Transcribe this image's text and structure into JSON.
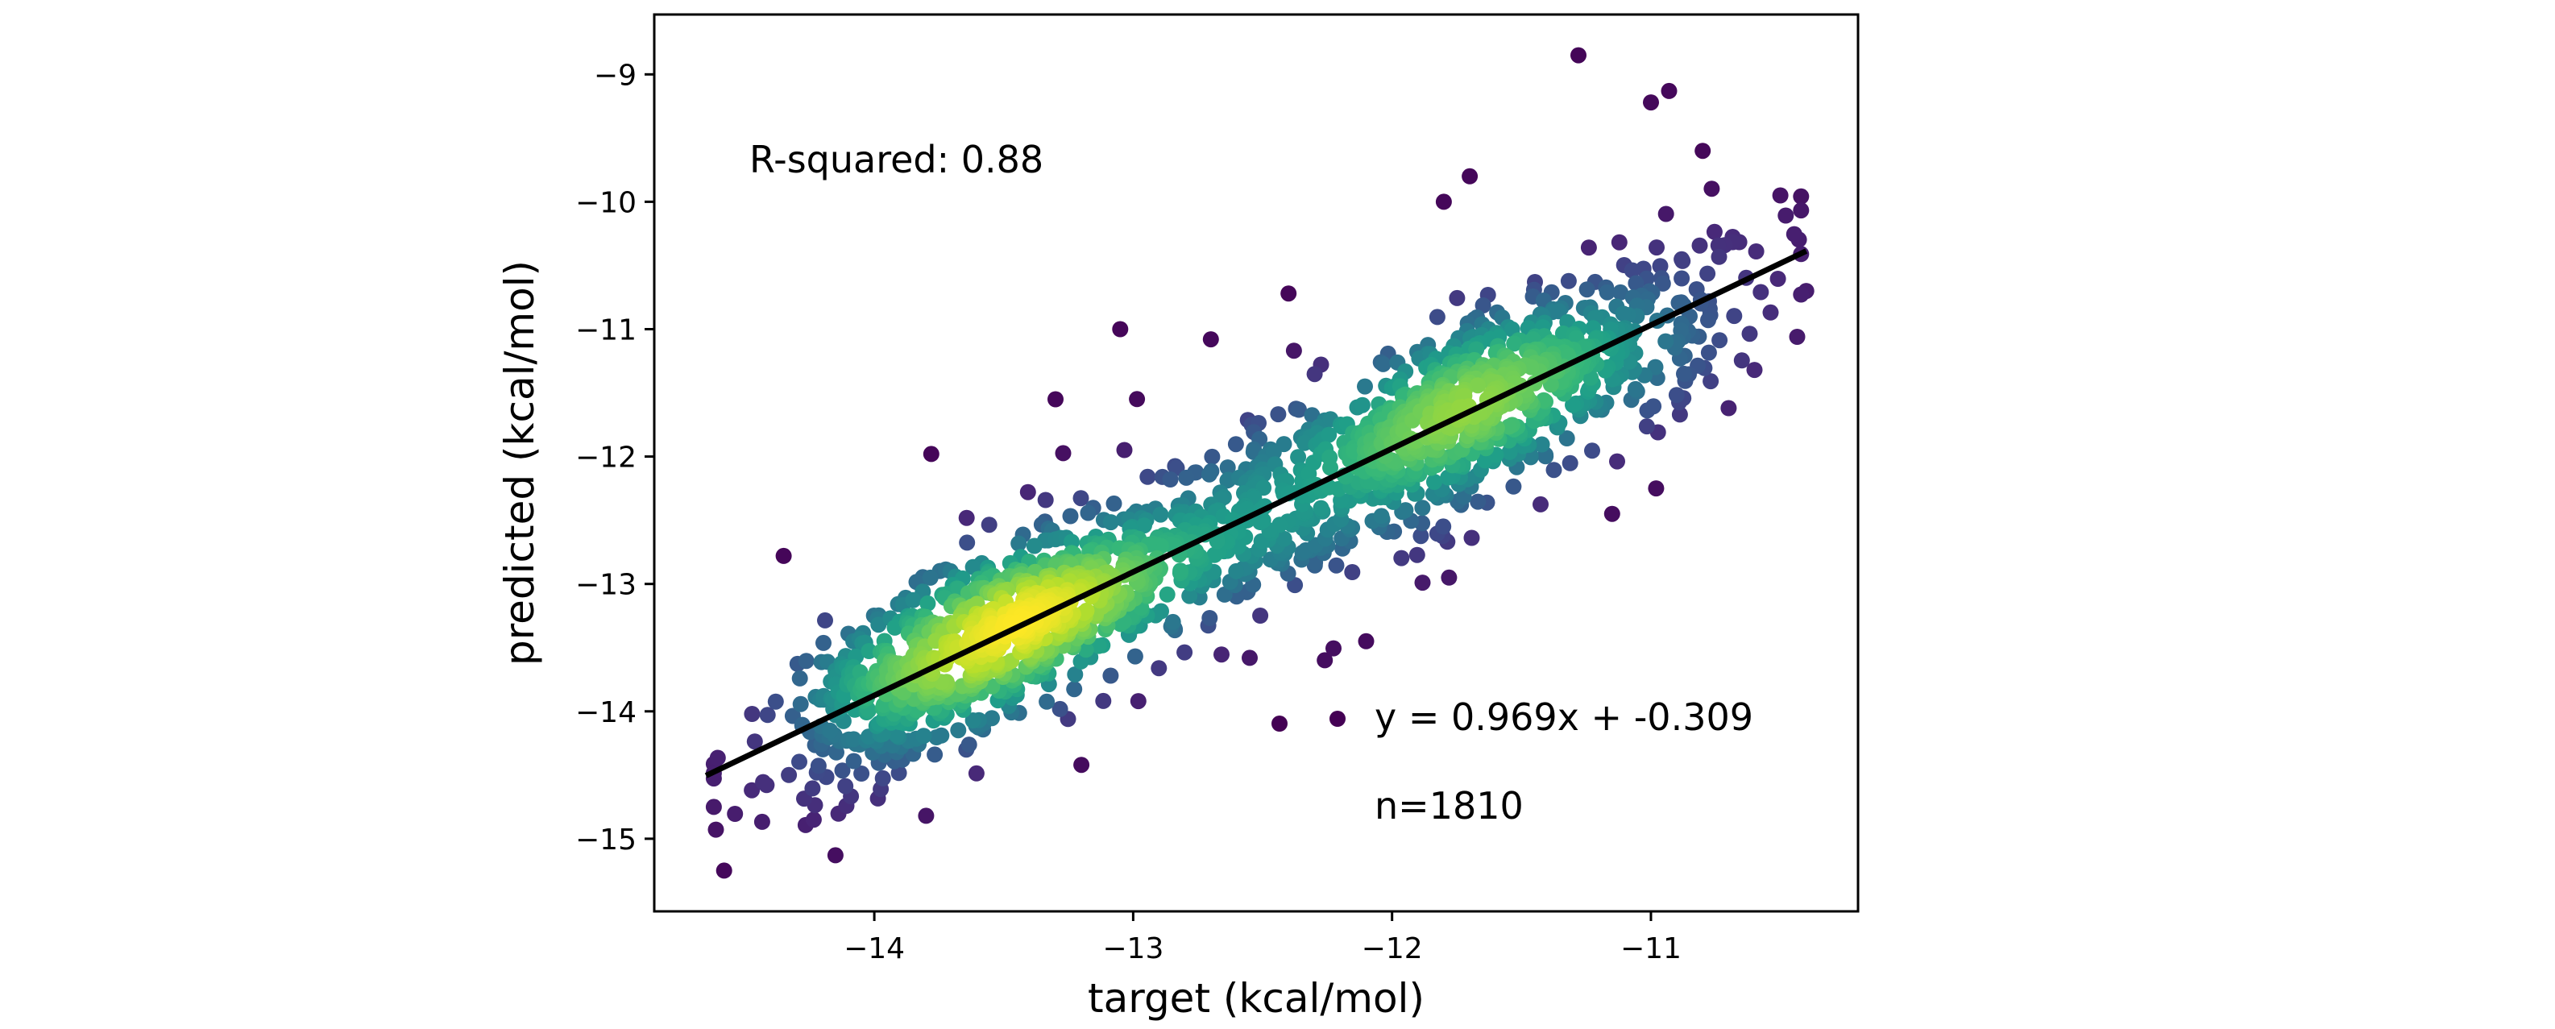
{
  "chart_data": {
    "type": "scatter",
    "title": "",
    "xlabel": "target (kcal/mol)",
    "ylabel": "predicted (kcal/mol)",
    "xlim": [
      -14.85,
      -10.2
    ],
    "ylim": [
      -15.57,
      -8.53
    ],
    "xticks": [
      -14,
      -13,
      -12,
      -11
    ],
    "xtick_labels": [
      "−14",
      "−13",
      "−12",
      "−11"
    ],
    "yticks": [
      -15,
      -14,
      -13,
      -12,
      -11,
      -10,
      -9
    ],
    "ytick_labels": [
      "−15",
      "−14",
      "−13",
      "−12",
      "−11",
      "−10",
      "−9"
    ],
    "grid": false,
    "legend": {
      "position": "lower-right",
      "label": "y = 0.969x + -0.309"
    },
    "colormap": "viridis (point density)",
    "colors": {
      "low_density": "#440154",
      "mid_density": "#21918c",
      "high_density": "#fde725",
      "fit_line": "#000000"
    },
    "fit_line": {
      "slope": 0.969,
      "intercept": -0.309,
      "x_range": [
        -14.65,
        -10.4
      ]
    },
    "annotations": {
      "r_squared": "R-squared: 0.88",
      "n": "n=1810"
    },
    "n_points": 1810,
    "points_sample": [
      {
        "x": -11.28,
        "y": -8.85
      },
      {
        "x": -10.93,
        "y": -9.13
      },
      {
        "x": -11.0,
        "y": -9.22
      },
      {
        "x": -10.8,
        "y": -9.6
      },
      {
        "x": -11.7,
        "y": -9.8
      },
      {
        "x": -11.8,
        "y": -10.0
      },
      {
        "x": -12.4,
        "y": -10.72
      },
      {
        "x": -13.05,
        "y": -11.0
      },
      {
        "x": -12.7,
        "y": -11.08
      },
      {
        "x": -13.3,
        "y": -11.55
      },
      {
        "x": -13.78,
        "y": -11.98
      },
      {
        "x": -14.35,
        "y": -12.78
      },
      {
        "x": -14.62,
        "y": -14.75
      },
      {
        "x": -14.58,
        "y": -15.25
      },
      {
        "x": -14.15,
        "y": -15.13
      },
      {
        "x": -13.8,
        "y": -14.82
      },
      {
        "x": -13.2,
        "y": -14.42
      },
      {
        "x": -12.98,
        "y": -13.92
      },
      {
        "x": -12.55,
        "y": -13.58
      },
      {
        "x": -12.1,
        "y": -13.45
      },
      {
        "x": -11.78,
        "y": -12.95
      },
      {
        "x": -11.15,
        "y": -12.45
      },
      {
        "x": -10.98,
        "y": -12.25
      },
      {
        "x": -10.7,
        "y": -11.62
      },
      {
        "x": -10.4,
        "y": -10.7
      },
      {
        "x": -10.6,
        "y": -11.32
      },
      {
        "x": -10.5,
        "y": -9.95
      }
    ]
  }
}
